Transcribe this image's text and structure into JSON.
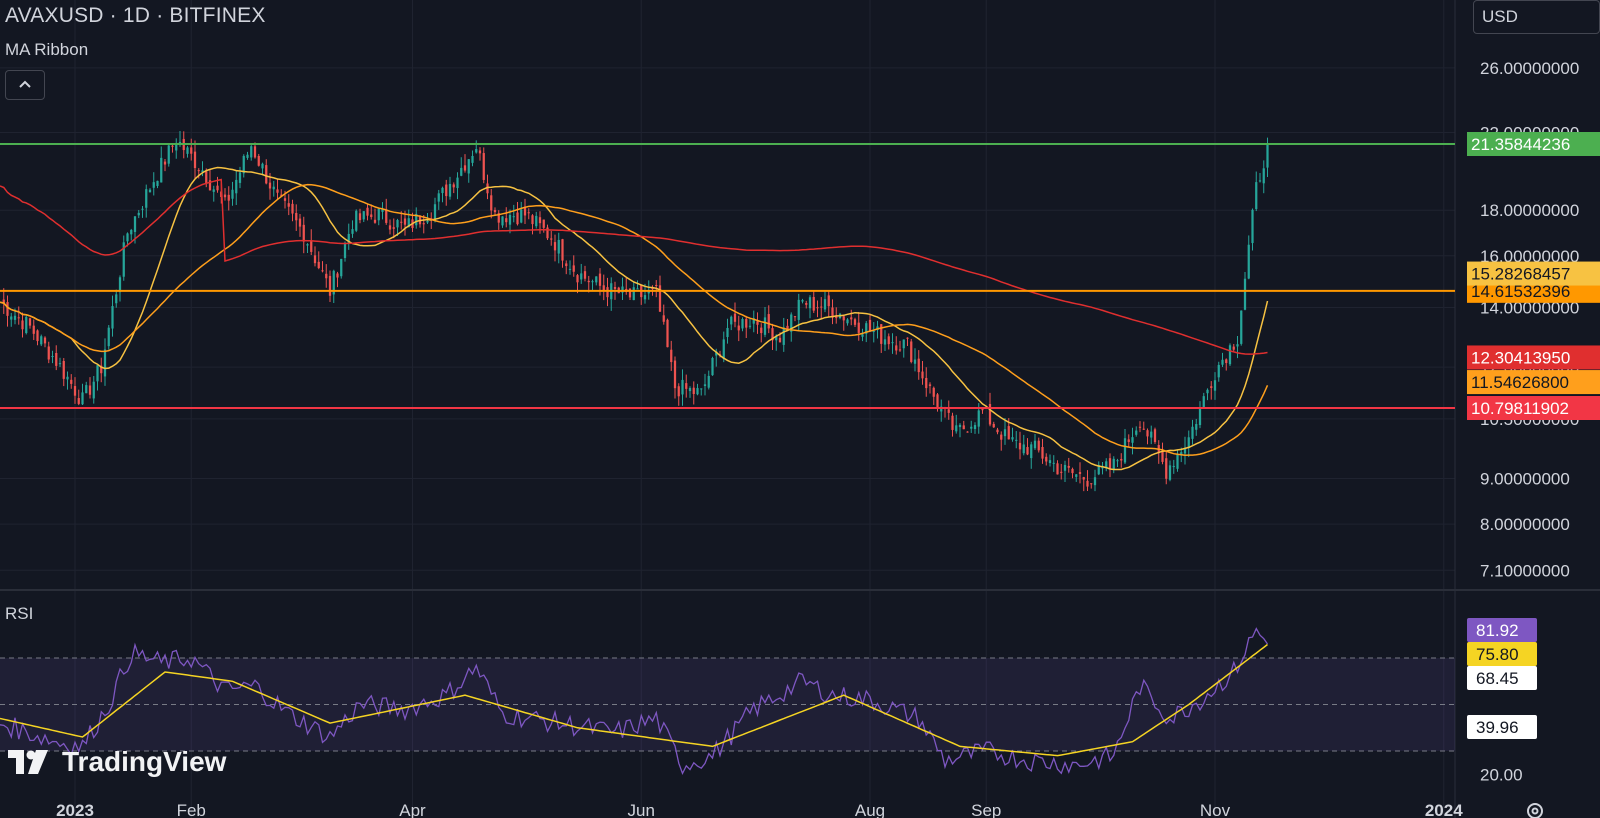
{
  "header": {
    "title": "AVAXUSD · 1D · BITFINEX",
    "indicator": "MA Ribbon",
    "currency": "USD"
  },
  "rsi_panel": {
    "title": "RSI"
  },
  "watermark": {
    "text": "TradingView"
  },
  "icons": {
    "collapse": "chevron-up-icon",
    "settings": "gear-icon",
    "logo": "tradingview-logo-icon"
  },
  "colors": {
    "background": "#131722",
    "candle_up": "#26a69a",
    "candle_down": "#ef5350",
    "green_line": "#4caf50",
    "orange_line": "#ff9800",
    "red_line": "#f23645",
    "ma_fast": "#f7c242",
    "ma_mid": "#ff9f1c",
    "ma_slow": "#e02f2f",
    "rsi_line": "#7e57c2",
    "rsi_ma": "#f5d423"
  },
  "chart_data": [
    {
      "type": "candlestick",
      "title": "AVAXUSD · 1D · BITFINEX",
      "xlabel": "",
      "ylabel": "",
      "x_ticks": [
        "2023",
        "Feb",
        "Apr",
        "Jun",
        "Aug",
        "Sep",
        "Nov",
        "2024"
      ],
      "y_ticks": [
        "7.10000000",
        "8.00000000",
        "9.00000000",
        "10.50000000",
        "12.00000000",
        "14.00000000",
        "16.00000000",
        "18.00000000",
        "22.00000000",
        "26.00000000"
      ],
      "y_scale": "log",
      "ylim": [
        6.8,
        30
      ],
      "horizontal_lines": [
        {
          "value": 21.35844236,
          "label": "21.35844236",
          "color": "#4caf50"
        },
        {
          "value": 14.61532396,
          "label": "14.61532396",
          "color": "#ff9800"
        },
        {
          "value": 10.79811902,
          "label": "10.79811902",
          "color": "#f23645"
        }
      ],
      "price_labels": [
        {
          "value": 15.28268457,
          "label": "15.28268457",
          "color": "#f7c242"
        },
        {
          "value": 12.3041395,
          "label": "12.30413950",
          "color": "#e02f2f"
        },
        {
          "value": 11.546268,
          "label": "11.54626800",
          "color": "#ff9f1c"
        }
      ],
      "candle_close_anchors": [
        [
          "2022-12-12",
          14.2
        ],
        [
          "2022-12-20",
          13.3
        ],
        [
          "2022-12-27",
          12.2
        ],
        [
          "2023-01-03",
          11.0
        ],
        [
          "2023-01-08",
          12.0
        ],
        [
          "2023-01-15",
          17.0
        ],
        [
          "2023-01-22",
          19.5
        ],
        [
          "2023-01-28",
          21.6
        ],
        [
          "2023-02-04",
          20.0
        ],
        [
          "2023-02-10",
          18.2
        ],
        [
          "2023-02-17",
          21.3
        ],
        [
          "2023-02-24",
          18.5
        ],
        [
          "2023-03-03",
          17.0
        ],
        [
          "2023-03-10",
          14.6
        ],
        [
          "2023-03-16",
          17.5
        ],
        [
          "2023-03-23",
          17.8
        ],
        [
          "2023-03-30",
          17.2
        ],
        [
          "2023-04-06",
          18.0
        ],
        [
          "2023-04-13",
          19.8
        ],
        [
          "2023-04-18",
          21.3
        ],
        [
          "2023-04-23",
          17.8
        ],
        [
          "2023-05-01",
          17.8
        ],
        [
          "2023-05-08",
          16.8
        ],
        [
          "2023-05-15",
          15.3
        ],
        [
          "2023-05-22",
          14.7
        ],
        [
          "2023-05-29",
          14.4
        ],
        [
          "2023-06-05",
          14.5
        ],
        [
          "2023-06-10",
          11.4
        ],
        [
          "2023-06-17",
          11.2
        ],
        [
          "2023-06-24",
          13.3
        ],
        [
          "2023-07-01",
          13.6
        ],
        [
          "2023-07-08",
          13.0
        ],
        [
          "2023-07-14",
          14.2
        ],
        [
          "2023-07-21",
          14.0
        ],
        [
          "2023-07-28",
          13.5
        ],
        [
          "2023-08-04",
          13.0
        ],
        [
          "2023-08-11",
          12.7
        ],
        [
          "2023-08-17",
          11.3
        ],
        [
          "2023-08-24",
          10.1
        ],
        [
          "2023-08-31",
          10.7
        ],
        [
          "2023-09-07",
          9.9
        ],
        [
          "2023-09-14",
          9.7
        ],
        [
          "2023-09-21",
          9.2
        ],
        [
          "2023-09-28",
          9.0
        ],
        [
          "2023-10-05",
          9.3
        ],
        [
          "2023-10-12",
          10.5
        ],
        [
          "2023-10-19",
          9.2
        ],
        [
          "2023-10-25",
          10.0
        ],
        [
          "2023-11-01",
          11.9
        ],
        [
          "2023-11-07",
          13.0
        ],
        [
          "2023-11-12",
          19.0
        ],
        [
          "2023-11-15",
          21.4
        ]
      ]
    },
    {
      "type": "line",
      "title": "RSI",
      "xlabel": "",
      "ylabel": "",
      "y_ticks": [
        "20.00"
      ],
      "ylim": [
        15,
        95
      ],
      "bands": [
        30,
        50,
        70
      ],
      "value_labels": [
        {
          "value": 81.92,
          "label": "81.92",
          "color": "#7e57c2"
        },
        {
          "value": 75.8,
          "label": "75.80",
          "color": "#f5d423"
        },
        {
          "value": 68.45,
          "label": "68.45",
          "color": "#ffffff"
        },
        {
          "value": 39.96,
          "label": "39.96",
          "color": "#ffffff"
        }
      ],
      "rsi_anchors": [
        [
          "2022-12-12",
          42
        ],
        [
          "2022-12-27",
          34
        ],
        [
          "2023-01-03",
          32
        ],
        [
          "2023-01-10",
          50
        ],
        [
          "2023-01-16",
          72
        ],
        [
          "2023-01-24",
          68
        ],
        [
          "2023-02-01",
          70
        ],
        [
          "2023-02-10",
          56
        ],
        [
          "2023-02-18",
          58
        ],
        [
          "2023-02-27",
          46
        ],
        [
          "2023-03-10",
          36
        ],
        [
          "2023-03-18",
          50
        ],
        [
          "2023-03-30",
          48
        ],
        [
          "2023-04-10",
          54
        ],
        [
          "2023-04-18",
          66
        ],
        [
          "2023-04-25",
          46
        ],
        [
          "2023-05-10",
          42
        ],
        [
          "2023-05-25",
          38
        ],
        [
          "2023-06-05",
          44
        ],
        [
          "2023-06-12",
          24
        ],
        [
          "2023-06-20",
          28
        ],
        [
          "2023-07-01",
          48
        ],
        [
          "2023-07-14",
          60
        ],
        [
          "2023-07-22",
          54
        ],
        [
          "2023-08-01",
          52
        ],
        [
          "2023-08-14",
          44
        ],
        [
          "2023-08-21",
          26
        ],
        [
          "2023-09-01",
          30
        ],
        [
          "2023-09-12",
          26
        ],
        [
          "2023-09-25",
          24
        ],
        [
          "2023-10-05",
          28
        ],
        [
          "2023-10-12",
          58
        ],
        [
          "2023-10-20",
          44
        ],
        [
          "2023-10-28",
          52
        ],
        [
          "2023-11-06",
          64
        ],
        [
          "2023-11-12",
          82
        ],
        [
          "2023-11-15",
          76
        ]
      ],
      "rsi_ma_anchors": [
        [
          "2022-12-12",
          44
        ],
        [
          "2023-01-03",
          36
        ],
        [
          "2023-01-25",
          64
        ],
        [
          "2023-02-12",
          60
        ],
        [
          "2023-03-10",
          42
        ],
        [
          "2023-04-15",
          54
        ],
        [
          "2023-05-15",
          40
        ],
        [
          "2023-06-20",
          32
        ],
        [
          "2023-07-25",
          54
        ],
        [
          "2023-08-25",
          32
        ],
        [
          "2023-09-20",
          28
        ],
        [
          "2023-10-10",
          34
        ],
        [
          "2023-10-25",
          50
        ],
        [
          "2023-11-15",
          75.8
        ]
      ]
    }
  ]
}
